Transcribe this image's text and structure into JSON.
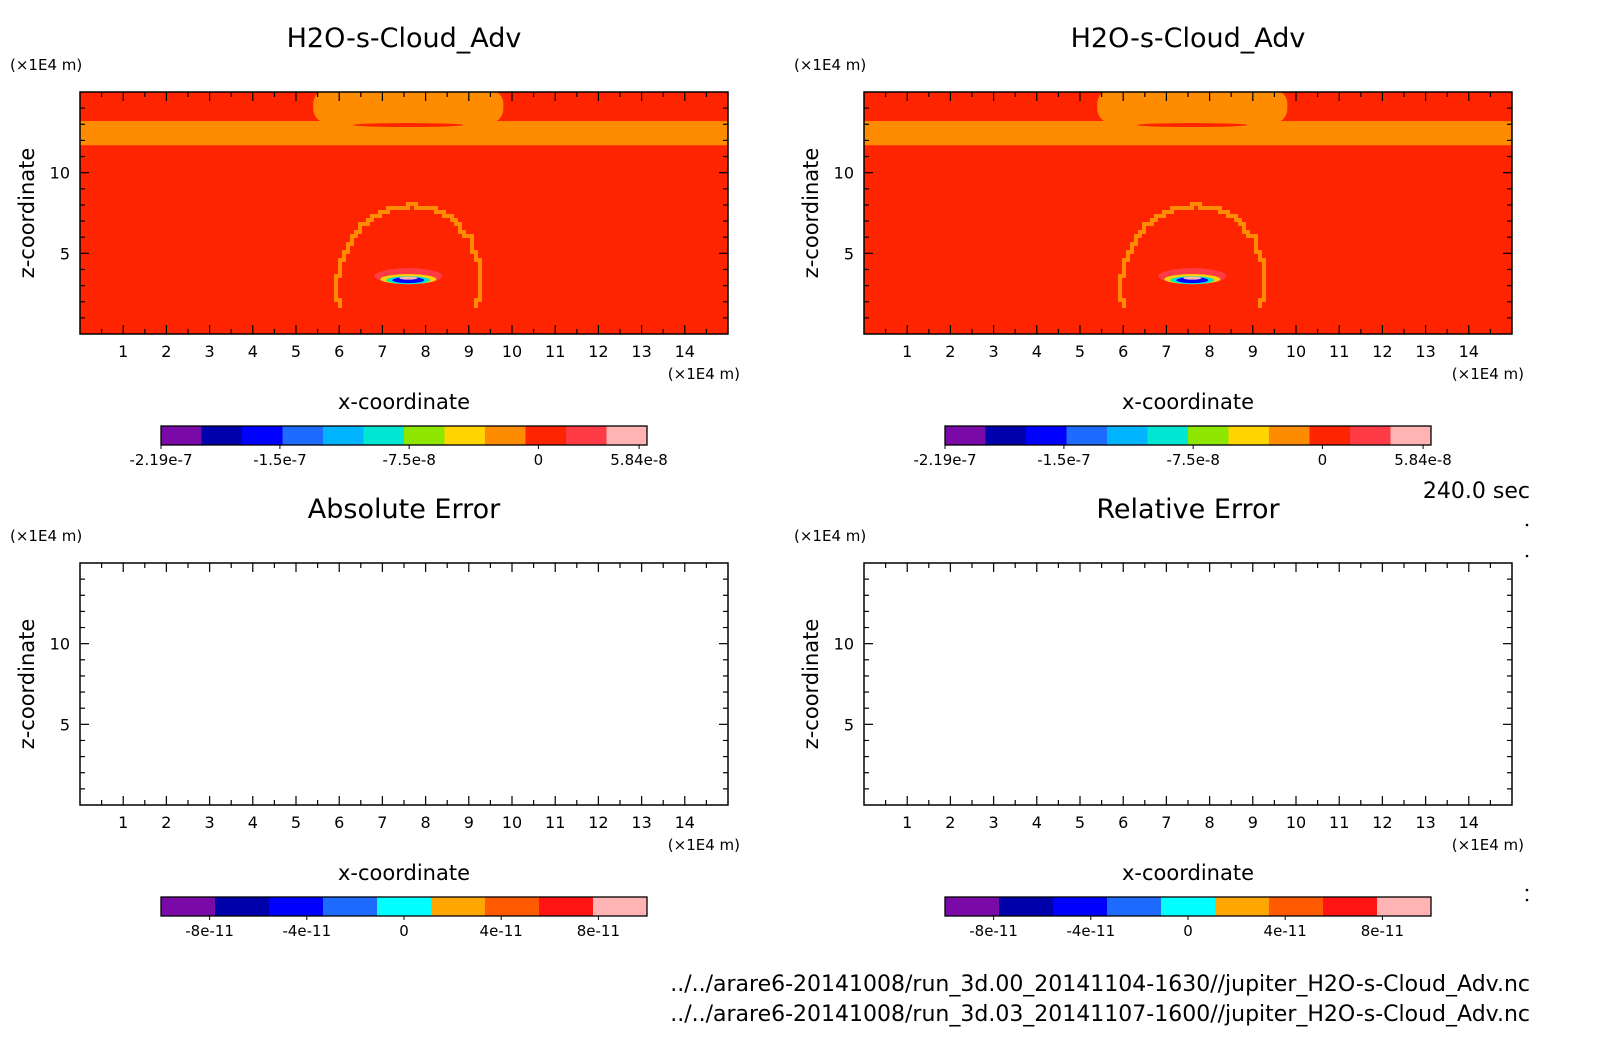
{
  "page": {
    "time_label": "240.0 sec",
    "files": [
      "../../arare6-20141008/run_3d.00_20141104-1630//jupiter_H2O-s-Cloud_Adv.nc",
      "../../arare6-20141008/run_3d.03_20141107-1600//jupiter_H2O-s-Cloud_Adv.nc"
    ]
  },
  "chart_data": [
    {
      "type": "heatmap",
      "title": "H2O-s-Cloud_Adv",
      "xlabel": "x-coordinate",
      "ylabel": "z-coordinate",
      "x_unit": "(×1E4 m)",
      "y_unit": "(×1E4 m)",
      "xlim": [
        0,
        15
      ],
      "ylim": [
        0,
        15
      ],
      "x_ticks": [
        "1",
        "2",
        "3",
        "4",
        "5",
        "6",
        "7",
        "8",
        "9",
        "10",
        "11",
        "12",
        "13",
        "14"
      ],
      "y_ticks": [
        "5",
        "10"
      ],
      "colorbar": {
        "colors": [
          "#7a0aa8",
          "#0000aa",
          "#0000ff",
          "#1d6cff",
          "#00b4ff",
          "#00e6d2",
          "#8ee600",
          "#ffd400",
          "#ff8c00",
          "#ff2400",
          "#ff3c46",
          "#ffb4b4"
        ],
        "labels": [
          "-2.19e-7",
          "-1.5e-7",
          "-7.5e-8",
          "0",
          "5.84e-8"
        ],
        "label_values": [
          -2.19e-07,
          -1.5e-07,
          -7.5e-08,
          0,
          5.84e-08
        ],
        "range": [
          -2.19e-07,
          6.3e-08
        ]
      },
      "field": {
        "background": "#ff2400",
        "band": {
          "z": [
            11.7,
            13.2
          ],
          "color": "#ff8c00"
        },
        "cap": {
          "x": [
            5.4,
            9.8
          ],
          "z": [
            13.2,
            14.9
          ],
          "color": "#ff8c00"
        },
        "dome": {
          "cx": 7.6,
          "cz": 3.2,
          "rx": 1.65,
          "rz": 4.75,
          "color": "#ff8c00"
        },
        "core": {
          "cx": 7.6,
          "cz": 3.4,
          "color": "#0000ff"
        }
      }
    },
    {
      "type": "heatmap",
      "title": "H2O-s-Cloud_Adv",
      "xlabel": "x-coordinate",
      "ylabel": "z-coordinate",
      "x_unit": "(×1E4 m)",
      "y_unit": "(×1E4 m)",
      "xlim": [
        0,
        15
      ],
      "ylim": [
        0,
        15
      ],
      "x_ticks": [
        "1",
        "2",
        "3",
        "4",
        "5",
        "6",
        "7",
        "8",
        "9",
        "10",
        "11",
        "12",
        "13",
        "14"
      ],
      "y_ticks": [
        "5",
        "10"
      ],
      "colorbar": {
        "colors": [
          "#7a0aa8",
          "#0000aa",
          "#0000ff",
          "#1d6cff",
          "#00b4ff",
          "#00e6d2",
          "#8ee600",
          "#ffd400",
          "#ff8c00",
          "#ff2400",
          "#ff3c46",
          "#ffb4b4"
        ],
        "labels": [
          "-2.19e-7",
          "-1.5e-7",
          "-7.5e-8",
          "0",
          "5.84e-8"
        ],
        "label_values": [
          -2.19e-07,
          -1.5e-07,
          -7.5e-08,
          0,
          5.84e-08
        ],
        "range": [
          -2.19e-07,
          6.3e-08
        ]
      },
      "field": {
        "background": "#ff2400",
        "band": {
          "z": [
            11.7,
            13.2
          ],
          "color": "#ff8c00"
        },
        "cap": {
          "x": [
            5.4,
            9.8
          ],
          "z": [
            13.2,
            14.9
          ],
          "color": "#ff8c00"
        },
        "dome": {
          "cx": 7.6,
          "cz": 3.2,
          "rx": 1.65,
          "rz": 4.75,
          "color": "#ff8c00"
        },
        "core": {
          "cx": 7.6,
          "cz": 3.4,
          "color": "#0000ff"
        }
      }
    },
    {
      "type": "heatmap",
      "title": "Absolute Error",
      "xlabel": "x-coordinate",
      "ylabel": "z-coordinate",
      "x_unit": "(×1E4 m)",
      "y_unit": "(×1E4 m)",
      "xlim": [
        0,
        15
      ],
      "ylim": [
        0,
        15
      ],
      "x_ticks": [
        "1",
        "2",
        "3",
        "4",
        "5",
        "6",
        "7",
        "8",
        "9",
        "10",
        "11",
        "12",
        "13",
        "14"
      ],
      "y_ticks": [
        "5",
        "10"
      ],
      "colorbar": {
        "colors": [
          "#7a0aa8",
          "#0000aa",
          "#0000ff",
          "#1d6cff",
          "#00ffff",
          "#ffa500",
          "#ff5a00",
          "#ff1414",
          "#ffb4b4"
        ],
        "labels": [
          "-8e-11",
          "-4e-11",
          "0",
          "4e-11",
          "8e-11"
        ],
        "label_values": [
          -8e-11,
          -4e-11,
          0,
          4e-11,
          8e-11
        ],
        "range": [
          -1e-10,
          1e-10
        ]
      },
      "field": null
    },
    {
      "type": "heatmap",
      "title": "Relative Error",
      "xlabel": "x-coordinate",
      "ylabel": "z-coordinate",
      "x_unit": "(×1E4 m)",
      "y_unit": "(×1E4 m)",
      "xlim": [
        0,
        15
      ],
      "ylim": [
        0,
        15
      ],
      "x_ticks": [
        "1",
        "2",
        "3",
        "4",
        "5",
        "6",
        "7",
        "8",
        "9",
        "10",
        "11",
        "12",
        "13",
        "14"
      ],
      "y_ticks": [
        "5",
        "10"
      ],
      "colorbar": {
        "colors": [
          "#7a0aa8",
          "#0000aa",
          "#0000ff",
          "#1d6cff",
          "#00ffff",
          "#ffa500",
          "#ff5a00",
          "#ff1414",
          "#ffb4b4"
        ],
        "labels": [
          "-8e-11",
          "-4e-11",
          "0",
          "4e-11",
          "8e-11"
        ],
        "label_values": [
          -8e-11,
          -4e-11,
          0,
          4e-11,
          8e-11
        ],
        "range": [
          -1e-10,
          1e-10
        ]
      },
      "field": null
    }
  ]
}
